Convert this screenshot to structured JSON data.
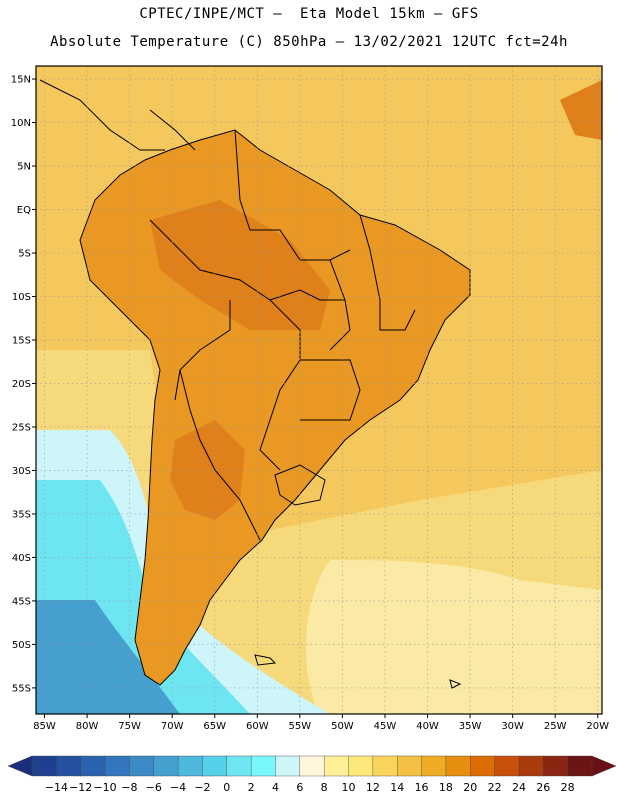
{
  "header": {
    "line1": "CPTEC/INPE/MCT –  Eta Model 15km – GFS",
    "line2": "Absolute Temperature (C) 850hPa – 13/02/2021 12UTC fct=24h"
  },
  "map": {
    "lat_labels": [
      "15N",
      "10N",
      "5N",
      "EQ",
      "5S",
      "10S",
      "15S",
      "20S",
      "25S",
      "30S",
      "35S",
      "40S",
      "45S",
      "50S",
      "55S"
    ],
    "lon_labels": [
      "85W",
      "80W",
      "75W",
      "70W",
      "65W",
      "60W",
      "55W",
      "50W",
      "45W",
      "40W",
      "35W",
      "30W",
      "25W",
      "20W"
    ],
    "lat_values": [
      15,
      10,
      5,
      0,
      -5,
      -10,
      -15,
      -20,
      -25,
      -30,
      -35,
      -40,
      -45,
      -50,
      -55
    ],
    "lon_values": [
      -85,
      -80,
      -75,
      -70,
      -65,
      -60,
      -55,
      -50,
      -45,
      -40,
      -35,
      -30,
      -25,
      -20
    ],
    "lat_range": [
      -58,
      16.5
    ],
    "lon_range": [
      -86,
      -19.5
    ]
  },
  "colorbar": {
    "labels": [
      "-14",
      "-12",
      "-10",
      "-8",
      "-6",
      "-4",
      "-2",
      "0",
      "2",
      "4",
      "6",
      "8",
      "10",
      "12",
      "14",
      "16",
      "18",
      "20",
      "22",
      "24",
      "26",
      "28"
    ],
    "colors": [
      "#1f3f8f",
      "#25509f",
      "#2c63ae",
      "#3476bd",
      "#3d8bc6",
      "#45a0cf",
      "#4cb8dc",
      "#56cfe8",
      "#6ee6f2",
      "#79f7fb",
      "#cdf5fa",
      "#fff6dc",
      "#ffef96",
      "#fde67a",
      "#f9d45b",
      "#f3c044",
      "#edac24",
      "#e58e0f",
      "#dc6c06",
      "#c9500b",
      "#a93b0d",
      "#8a2512",
      "#6c1515"
    ],
    "left_arrow_color": "#1a2f7a",
    "right_arrow_color": "#6a0f18"
  },
  "palette": {
    "ocean_warm": "#f4c85c",
    "ocean_mid": "#f6d97a",
    "ocean_cool": "#fbeaa6",
    "land_hot": "#e89823",
    "land_very_hot": "#e0801a",
    "cold_mid": "#cdf5fa",
    "cold": "#6ee6f2",
    "colder": "#56cfe8",
    "coldest": "#45a0cf"
  }
}
